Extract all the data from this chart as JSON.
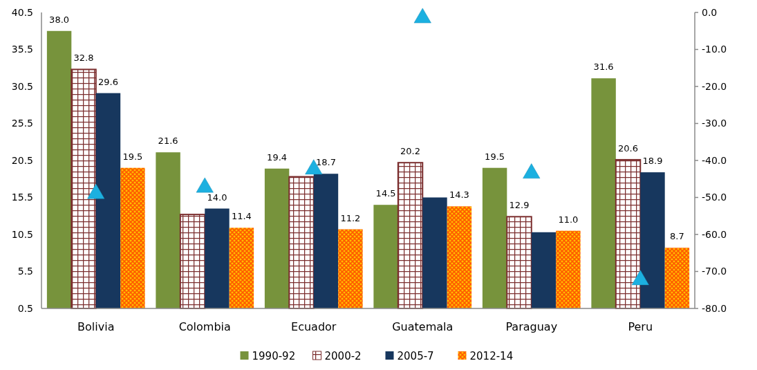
{
  "chart_data": {
    "type": "bar",
    "categories": [
      "Bolivia",
      "Colombia",
      "Ecuador",
      "Guatemala",
      "Paraguay",
      "Peru"
    ],
    "series": [
      {
        "name": "1990-92",
        "color": "#77933c",
        "values": [
          38.0,
          21.6,
          19.4,
          14.5,
          19.5,
          31.6
        ],
        "value_labels": [
          "38.0",
          "21.6",
          "19.4",
          "14.5",
          "19.5",
          "31.6"
        ]
      },
      {
        "name": "2000-2",
        "color": "#7b2e2e",
        "values": [
          32.8,
          13.2,
          18.3,
          20.2,
          12.9,
          20.6
        ],
        "value_labels": [
          "32.8",
          null,
          null,
          "20.2",
          "12.9",
          "20.6"
        ]
      },
      {
        "name": "2005-7",
        "color": "#17375e",
        "values": [
          29.6,
          14.0,
          18.7,
          15.5,
          10.8,
          18.9
        ],
        "value_labels": [
          "29.6",
          "14.0",
          "18.7",
          null,
          null,
          "18.9"
        ]
      },
      {
        "name": "2012-14",
        "color": "#ff5a00",
        "values": [
          19.5,
          11.4,
          11.2,
          14.3,
          11.0,
          8.7
        ],
        "value_labels": [
          "19.5",
          "11.4",
          "11.2",
          "14.3",
          "11.0",
          "8.7"
        ]
      },
      {
        "type": "scatter",
        "axis": "y2",
        "marker": "triangle",
        "color": "#1cb0e0",
        "values": [
          -49.0,
          -47.3,
          -42.4,
          -1.5,
          -43.5,
          -72.3
        ]
      }
    ],
    "ylim": [
      0.5,
      40.5
    ],
    "yticks": [
      0.5,
      5.5,
      10.5,
      15.5,
      20.5,
      25.5,
      30.5,
      35.5,
      40.5
    ],
    "y2lim": [
      -80,
      0
    ],
    "y2ticks": [
      {
        "value": 0,
        "label": "0.0"
      },
      {
        "value": -10,
        "label": "-10.0"
      },
      {
        "value": -20,
        "label": "-20.0"
      },
      {
        "value": -30,
        "label": "-30.0"
      },
      {
        "value": -40,
        "label": "-40.0"
      },
      {
        "value": -50,
        "label": "-50.0"
      },
      {
        "value": -60,
        "label": "-60.0"
      },
      {
        "value": -70,
        "label": "-70.0"
      },
      {
        "value": -80,
        "label": "-80.0"
      }
    ],
    "grid": false,
    "legend": "bottom"
  }
}
